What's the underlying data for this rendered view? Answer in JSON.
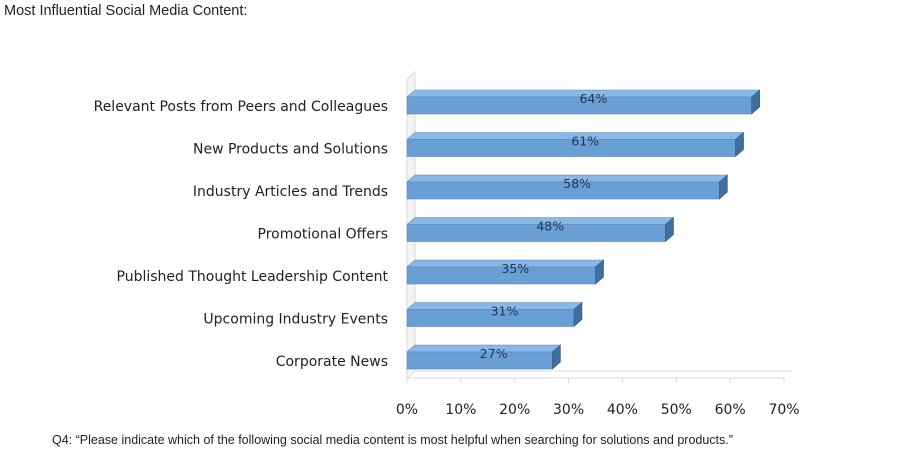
{
  "header": {
    "title": "Most Influential Social Media Content:"
  },
  "footer": {
    "note": "Q4: “Please indicate which of the following social media content is most helpful when searching for solutions and products.”"
  },
  "colors": {
    "bar_front": "#6a9fd6",
    "bar_top": "#8ab8e6",
    "bar_end": "#3e6f9e",
    "axis_wall": "#d9d9d9"
  },
  "chart_data": {
    "type": "bar",
    "orientation": "horizontal",
    "title": "",
    "xlabel": "",
    "ylabel": "",
    "categories": [
      "Relevant Posts from Peers and Colleagues",
      "New Products and Solutions",
      "Industry Articles and Trends",
      "Promotional Offers",
      "Published Thought Leadership Content",
      "Upcoming Industry Events",
      "Corporate News"
    ],
    "values": [
      64,
      61,
      58,
      48,
      35,
      31,
      27
    ],
    "data_labels": [
      "64%",
      "61%",
      "58%",
      "48%",
      "35%",
      "31%",
      "27%"
    ],
    "xlim": [
      0,
      70
    ],
    "ticks": [
      0,
      10,
      20,
      30,
      40,
      50,
      60,
      70
    ],
    "tick_labels": [
      "0%",
      "10%",
      "20%",
      "30%",
      "40%",
      "50%",
      "60%",
      "70%"
    ],
    "grid": false,
    "legend": "none"
  }
}
